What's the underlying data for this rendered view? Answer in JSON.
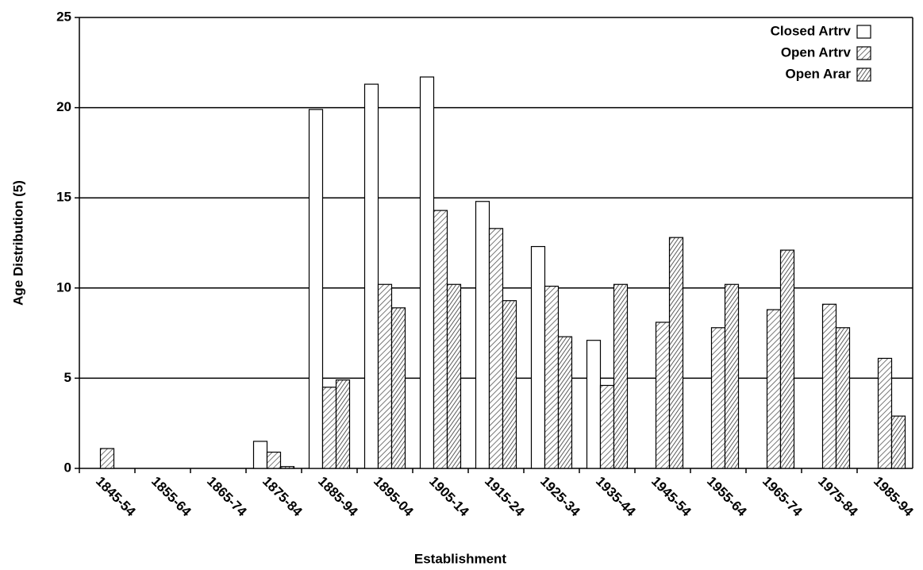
{
  "chart_data": {
    "type": "bar",
    "x_label": "Establishment",
    "y_label": "Age Distribution (5)",
    "categories": [
      "1845-54",
      "1855-64",
      "1865-74",
      "1875-84",
      "1885-94",
      "1895-04",
      "1905-14",
      "1915-24",
      "1925-34",
      "1935-44",
      "1945-54",
      "1955-64",
      "1965-74",
      "1975-84",
      "1985-94"
    ],
    "series": [
      {
        "name": "Closed Artrv",
        "color": "#ffffff",
        "pattern": "solid",
        "values": [
          0,
          0,
          0,
          1.5,
          19.9,
          21.3,
          21.7,
          14.8,
          12.3,
          7.1,
          0,
          0,
          0,
          0,
          0
        ]
      },
      {
        "name": "Open Artrv",
        "color": "#555555",
        "pattern": "hatch",
        "values": [
          1.1,
          0,
          0,
          0.9,
          4.5,
          10.2,
          14.3,
          13.3,
          10.1,
          4.6,
          8.1,
          7.8,
          8.8,
          9.1,
          6.1
        ]
      },
      {
        "name": "Open Arar",
        "color": "#333333",
        "pattern": "hatch",
        "values": [
          0,
          0,
          0,
          0.1,
          4.9,
          8.9,
          10.2,
          9.3,
          7.3,
          10.2,
          12.8,
          10.2,
          12.1,
          7.8,
          2.9
        ]
      }
    ],
    "ylim": [
      0,
      25
    ],
    "yticks": [
      0,
      5,
      10,
      15,
      20,
      25
    ],
    "grid": true,
    "legend": "top-right"
  }
}
